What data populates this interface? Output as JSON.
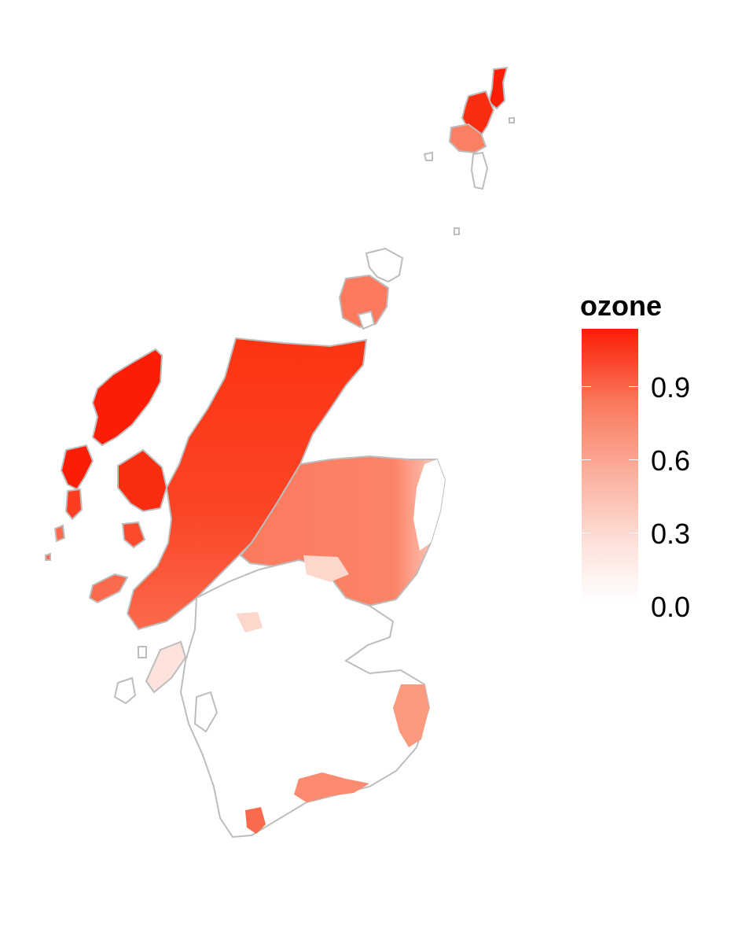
{
  "map": {
    "region": "Scotland",
    "fill_variable": "ozone",
    "outline_color": "#bdbdbd",
    "low_color": "#ffffff",
    "high_color": "#fb1d06"
  },
  "legend": {
    "title": "ozone",
    "ticks": [
      {
        "value": 0.9,
        "label": "0.9"
      },
      {
        "value": 0.6,
        "label": "0.6"
      },
      {
        "value": 0.3,
        "label": "0.3"
      },
      {
        "value": 0.0,
        "label": "0.0"
      }
    ],
    "range": [
      0.0,
      1.12
    ]
  }
}
